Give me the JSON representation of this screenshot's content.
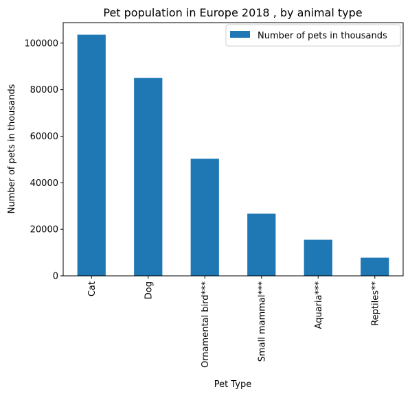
{
  "chart_data": {
    "type": "bar",
    "title": "Pet population in Europe 2018 , by animal type",
    "xlabel": "Pet Type",
    "ylabel": "Number of pets in thousands",
    "categories": [
      "Cat",
      "Dog",
      "Ornamental bird***",
      "Small mammal***",
      "Aquaria***",
      "Reptiles**"
    ],
    "series": [
      {
        "name": "Number of pets in thousands",
        "values": [
          103600,
          85000,
          50300,
          26700,
          15500,
          7800
        ],
        "color": "#1f77b4"
      }
    ],
    "ylim": [
      0,
      108780
    ],
    "yticks": [
      0,
      20000,
      40000,
      60000,
      80000,
      100000
    ],
    "ytick_labels": [
      "0",
      "20000",
      "40000",
      "60000",
      "80000",
      "100000"
    ],
    "legend_position": "top-right",
    "grid": false
  }
}
